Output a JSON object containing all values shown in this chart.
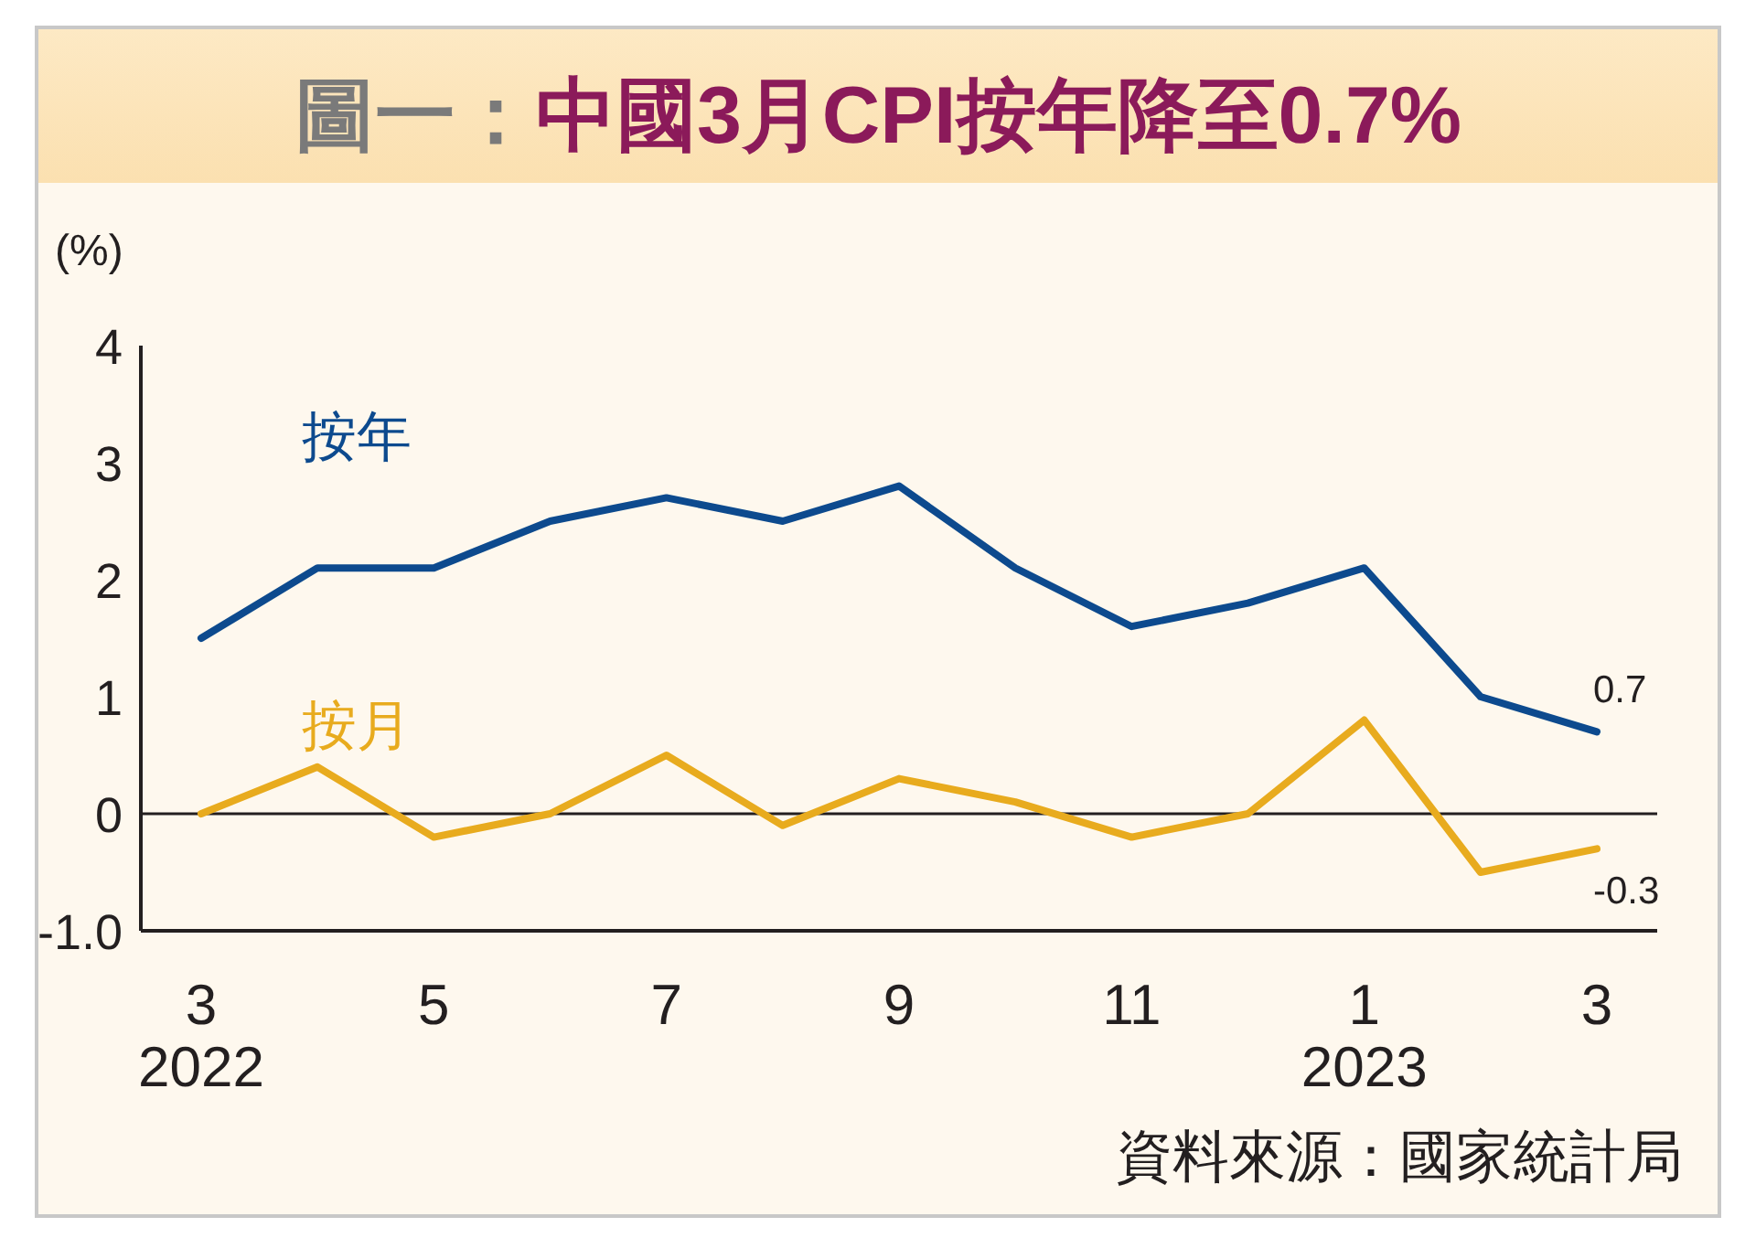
{
  "chart_data": {
    "type": "line",
    "title": "圖一：中國3月CPI按年降至0.7%",
    "ylabel": "(%)",
    "categories": [
      "3\n2022",
      null,
      "5",
      null,
      "7",
      null,
      "9",
      null,
      "11",
      null,
      "1\n2023",
      null,
      "3"
    ],
    "series": [
      {
        "name": "按年",
        "color": "#0d4a8e",
        "values": [
          1.5,
          2.1,
          2.1,
          2.5,
          2.7,
          2.5,
          2.8,
          2.1,
          1.6,
          1.8,
          2.1,
          1.0,
          0.7
        ],
        "value_labels": [
          null,
          null,
          null,
          null,
          null,
          null,
          null,
          null,
          null,
          null,
          null,
          null,
          "0.7"
        ]
      },
      {
        "name": "按月",
        "color": "#e8ab1e",
        "values": [
          0.0,
          0.4,
          -0.2,
          0.0,
          0.5,
          -0.1,
          0.3,
          0.1,
          -0.2,
          0.0,
          0.8,
          -0.5,
          -0.3
        ],
        "value_labels": [
          null,
          null,
          null,
          null,
          null,
          null,
          null,
          null,
          null,
          null,
          null,
          null,
          "-0.3"
        ]
      }
    ],
    "ylim": [
      -1,
      4
    ],
    "yticks": [
      {
        "value": -1,
        "label": "-1.0"
      },
      0,
      1,
      2,
      3,
      4
    ],
    "ref_lines": [
      {
        "axis": "y",
        "value": 0,
        "color": "#231f20"
      }
    ],
    "grid": false,
    "marker": "none",
    "line_style": "solid",
    "annotations": [
      "資料來源：國家統計局"
    ]
  }
}
